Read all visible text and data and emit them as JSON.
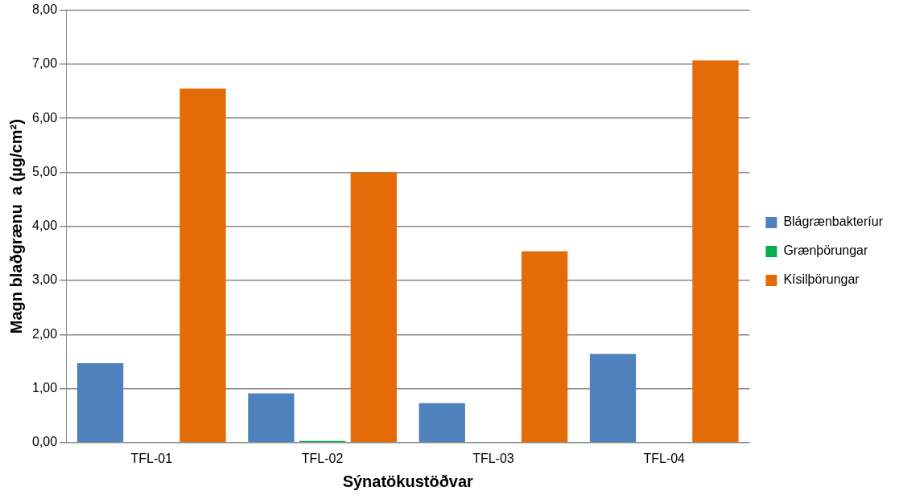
{
  "chart_data": {
    "type": "bar",
    "xlabel": "Sýnatökustöðvar",
    "ylabel": "Magn blaðgrænu  a (µg/cm²)",
    "categories": [
      "TFL-01",
      "TFL-02",
      "TFL-03",
      "TFL-04"
    ],
    "series": [
      {
        "name": "Blágrænbakteríur",
        "color": "#4f81bd",
        "values": [
          1.47,
          0.91,
          0.73,
          1.64
        ]
      },
      {
        "name": "Grænþörungar",
        "color": "#00b050",
        "values": [
          0,
          0.03,
          0,
          0
        ]
      },
      {
        "name": "Kísilþörungar",
        "color": "#e36c09",
        "values": [
          6.55,
          5.0,
          3.54,
          7.07
        ]
      }
    ],
    "ylim": [
      0,
      8
    ],
    "yticks": [
      {
        "value": 0,
        "label": "0,00"
      },
      {
        "value": 1,
        "label": "1,00"
      },
      {
        "value": 2,
        "label": "2,00"
      },
      {
        "value": 3,
        "label": "3,00"
      },
      {
        "value": 4,
        "label": "4,00"
      },
      {
        "value": 5,
        "label": "5,00"
      },
      {
        "value": 6,
        "label": "6,00"
      },
      {
        "value": 7,
        "label": "7,00"
      },
      {
        "value": 8,
        "label": "8,00"
      }
    ],
    "grid": "y",
    "legend": "right"
  }
}
